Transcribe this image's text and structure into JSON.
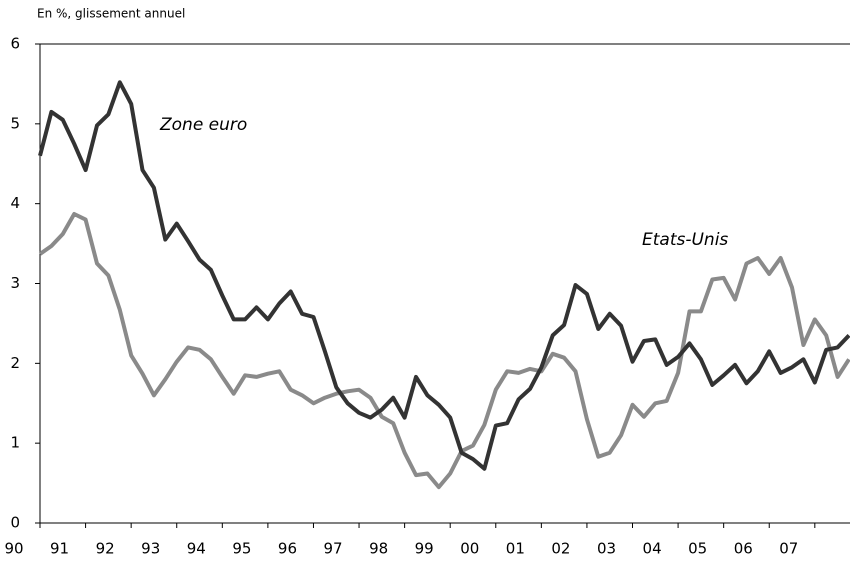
{
  "chart_data": {
    "type": "line",
    "ylabel": "En %, glissement annuel",
    "categories": [
      "90",
      null,
      null,
      null,
      "91",
      null,
      null,
      null,
      "92",
      null,
      null,
      null,
      "93",
      null,
      null,
      null,
      "94",
      null,
      null,
      null,
      "95",
      null,
      null,
      null,
      "96",
      null,
      null,
      null,
      "97",
      null,
      null,
      null,
      "98",
      null,
      null,
      null,
      "99",
      null,
      null,
      null,
      "00",
      null,
      null,
      null,
      "01",
      null,
      null,
      null,
      "02",
      null,
      null,
      null,
      "03",
      null,
      null,
      null,
      "04",
      null,
      null,
      null,
      "05",
      null,
      null,
      null,
      "06",
      null,
      null,
      null,
      "07",
      null,
      null,
      null
    ],
    "series": [
      {
        "name": "Zone euro",
        "color": "#333333",
        "values": [
          4.6,
          5.15,
          5.05,
          4.75,
          4.42,
          4.98,
          5.12,
          5.52,
          5.25,
          4.42,
          4.2,
          3.55,
          3.75,
          3.53,
          3.3,
          3.17,
          2.85,
          2.55,
          2.55,
          2.7,
          2.55,
          2.75,
          2.9,
          2.62,
          2.58,
          2.15,
          1.7,
          1.5,
          1.38,
          1.32,
          1.42,
          1.57,
          1.32,
          1.83,
          1.6,
          1.48,
          1.32,
          0.88,
          0.8,
          0.68,
          1.22,
          1.25,
          1.55,
          1.68,
          1.95,
          2.35,
          2.48,
          2.98,
          2.87,
          2.43,
          2.62,
          2.47,
          2.02,
          2.28,
          2.3,
          1.98,
          2.08,
          2.25,
          2.05,
          1.73,
          1.85,
          1.98,
          1.75,
          1.9,
          2.15,
          1.88,
          1.95,
          2.05,
          1.76,
          2.17,
          2.2,
          2.35
        ]
      },
      {
        "name": "Etats-Unis",
        "color": "#8a8a8a",
        "values": [
          3.37,
          3.47,
          3.62,
          3.87,
          3.8,
          3.25,
          3.1,
          2.67,
          2.1,
          1.87,
          1.6,
          1.8,
          2.02,
          2.2,
          2.17,
          2.05,
          1.83,
          1.62,
          1.85,
          1.83,
          1.87,
          1.9,
          1.67,
          1.6,
          1.5,
          1.57,
          1.62,
          1.65,
          1.67,
          1.57,
          1.33,
          1.25,
          0.88,
          0.6,
          0.62,
          0.45,
          0.62,
          0.9,
          0.97,
          1.23,
          1.67,
          1.9,
          1.88,
          1.93,
          1.9,
          2.12,
          2.07,
          1.9,
          1.3,
          0.83,
          0.88,
          1.1,
          1.48,
          1.33,
          1.5,
          1.53,
          1.88,
          2.65,
          2.65,
          3.05,
          3.07,
          2.8,
          3.25,
          3.32,
          3.12,
          3.32,
          2.95,
          2.23,
          2.55,
          2.35,
          1.83,
          2.05
        ]
      }
    ],
    "ylim": [
      0,
      6
    ],
    "yticks": [
      0,
      1,
      2,
      3,
      4,
      5,
      6
    ],
    "grid": false
  }
}
